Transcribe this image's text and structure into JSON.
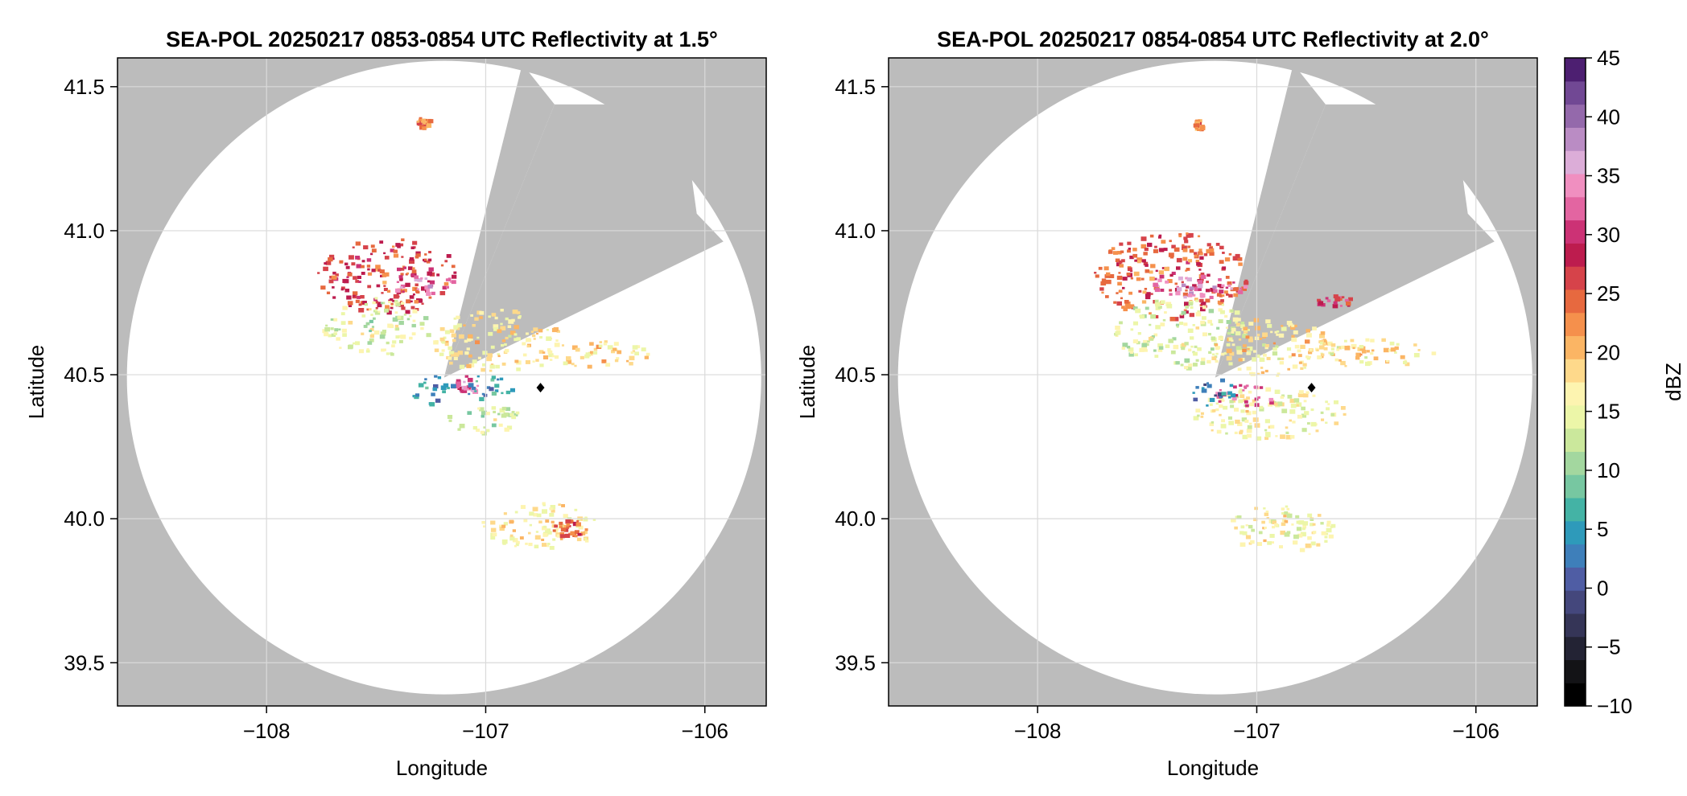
{
  "chart_data": [
    {
      "type": "heatmap",
      "title": "SEA-POL 20250217 0853-0854 UTC Reflectivity at 1.5°",
      "xlabel": "Longitude",
      "ylabel": "Latitude",
      "xlim": [
        -108.68,
        -105.72
      ],
      "ylim": [
        39.35,
        41.6
      ],
      "x_ticks": [
        -108,
        -107,
        -106
      ],
      "x_tick_labels": [
        "−108",
        "−107",
        "−106"
      ],
      "y_ticks": [
        39.5,
        40.0,
        40.5,
        41.0,
        41.5
      ],
      "y_tick_labels": [
        "39.5",
        "40.0",
        "40.5",
        "41.0",
        "41.5"
      ],
      "grid": true,
      "radar_center": [
        -107.19,
        40.49
      ],
      "radar_range_deg_lat": 1.1,
      "blocked_sector_deg": [
        [
          14,
          22
        ],
        [
          57,
          64
        ]
      ],
      "marker": {
        "lon": -106.75,
        "lat": 40.455
      },
      "echo_regions": [
        {
          "lon": -107.45,
          "lat": 40.85,
          "rlon": 0.32,
          "rlat": 0.13,
          "dbz": 26
        },
        {
          "lon": -107.3,
          "lat": 40.82,
          "rlon": 0.15,
          "rlat": 0.04,
          "dbz": 33
        },
        {
          "lon": -107.5,
          "lat": 40.67,
          "rlon": 0.25,
          "rlat": 0.1,
          "dbz": 14
        },
        {
          "lon": -106.95,
          "lat": 40.62,
          "rlon": 0.3,
          "rlat": 0.11,
          "dbz": 17
        },
        {
          "lon": -107.1,
          "lat": 40.47,
          "rlon": 0.08,
          "rlat": 0.03,
          "dbz": 33
        },
        {
          "lon": -107.25,
          "lat": 40.45,
          "rlon": 0.1,
          "rlat": 0.05,
          "dbz": 4
        },
        {
          "lon": -107.0,
          "lat": 40.46,
          "rlon": 0.12,
          "rlat": 0.04,
          "dbz": 5
        },
        {
          "lon": -107.02,
          "lat": 40.35,
          "rlon": 0.18,
          "rlat": 0.05,
          "dbz": 13
        },
        {
          "lon": -106.5,
          "lat": 40.58,
          "rlon": 0.25,
          "rlat": 0.05,
          "dbz": 18
        },
        {
          "lon": -106.75,
          "lat": 39.98,
          "rlon": 0.28,
          "rlat": 0.08,
          "dbz": 17
        },
        {
          "lon": -106.62,
          "lat": 39.97,
          "rlon": 0.08,
          "rlat": 0.03,
          "dbz": 25
        },
        {
          "lon": -107.29,
          "lat": 41.38,
          "rlon": 0.03,
          "rlat": 0.02,
          "dbz": 23
        }
      ]
    },
    {
      "type": "heatmap",
      "title": "SEA-POL 20250217 0854-0854 UTC Reflectivity at 2.0°",
      "xlabel": "Longitude",
      "ylabel": "Latitude",
      "xlim": [
        -108.68,
        -105.72
      ],
      "ylim": [
        39.35,
        41.6
      ],
      "x_ticks": [
        -108,
        -107,
        -106
      ],
      "x_tick_labels": [
        "−108",
        "−107",
        "−106"
      ],
      "y_ticks": [
        39.5,
        40.0,
        40.5,
        41.0,
        41.5
      ],
      "y_tick_labels": [
        "39.5",
        "40.0",
        "40.5",
        "41.0",
        "41.5"
      ],
      "grid": true,
      "radar_center": [
        -107.19,
        40.49
      ],
      "radar_range_deg_lat": 1.1,
      "blocked_sector_deg": [
        [
          14,
          22
        ],
        [
          57,
          64
        ]
      ],
      "marker": {
        "lon": -106.75,
        "lat": 40.455
      },
      "echo_regions": [
        {
          "lon": -107.4,
          "lat": 40.85,
          "rlon": 0.35,
          "rlat": 0.15,
          "dbz": 25
        },
        {
          "lon": -107.28,
          "lat": 40.81,
          "rlon": 0.22,
          "rlat": 0.04,
          "dbz": 34
        },
        {
          "lon": -107.35,
          "lat": 40.65,
          "rlon": 0.32,
          "rlat": 0.12,
          "dbz": 14
        },
        {
          "lon": -106.95,
          "lat": 40.6,
          "rlon": 0.28,
          "rlat": 0.1,
          "dbz": 18
        },
        {
          "lon": -106.65,
          "lat": 40.76,
          "rlon": 0.08,
          "rlat": 0.03,
          "dbz": 28
        },
        {
          "lon": -106.95,
          "lat": 40.37,
          "rlon": 0.35,
          "rlat": 0.09,
          "dbz": 16
        },
        {
          "lon": -107.05,
          "lat": 40.43,
          "rlon": 0.15,
          "rlat": 0.04,
          "dbz": 32
        },
        {
          "lon": -107.2,
          "lat": 40.44,
          "rlon": 0.1,
          "rlat": 0.05,
          "dbz": 3
        },
        {
          "lon": -106.5,
          "lat": 40.58,
          "rlon": 0.3,
          "rlat": 0.05,
          "dbz": 17
        },
        {
          "lon": -106.9,
          "lat": 39.97,
          "rlon": 0.25,
          "rlat": 0.08,
          "dbz": 16
        },
        {
          "lon": -107.27,
          "lat": 41.37,
          "rlon": 0.02,
          "rlat": 0.02,
          "dbz": 22
        }
      ]
    }
  ],
  "colorbar": {
    "label": "dBZ",
    "range": [
      -10,
      45
    ],
    "ticks": [
      45,
      40,
      35,
      30,
      25,
      20,
      15,
      10,
      5,
      0,
      -5,
      -10
    ],
    "tick_labels": [
      "45",
      "40",
      "35",
      "30",
      "25",
      "20",
      "15",
      "10",
      "5",
      "0",
      "−5",
      "−10"
    ],
    "colors": [
      "#000000",
      "#131316",
      "#232334",
      "#353557",
      "#44477c",
      "#4f5da4",
      "#3e7fba",
      "#2e9aba",
      "#44b3a5",
      "#77c7a1",
      "#a3d79f",
      "#cbe89c",
      "#ecf6a8",
      "#fdf4b0",
      "#fed98b",
      "#fbb564",
      "#f5904c",
      "#e7693f",
      "#d6434a",
      "#bd1c4e",
      "#cc3275",
      "#e365a1",
      "#f08fc0",
      "#dcadd8",
      "#ba8cc4",
      "#9469ab",
      "#714894",
      "#4d1f71"
    ]
  },
  "colors": {
    "blocked": "#bcbcbc",
    "grid": "#dadada",
    "frame": "#000000"
  }
}
